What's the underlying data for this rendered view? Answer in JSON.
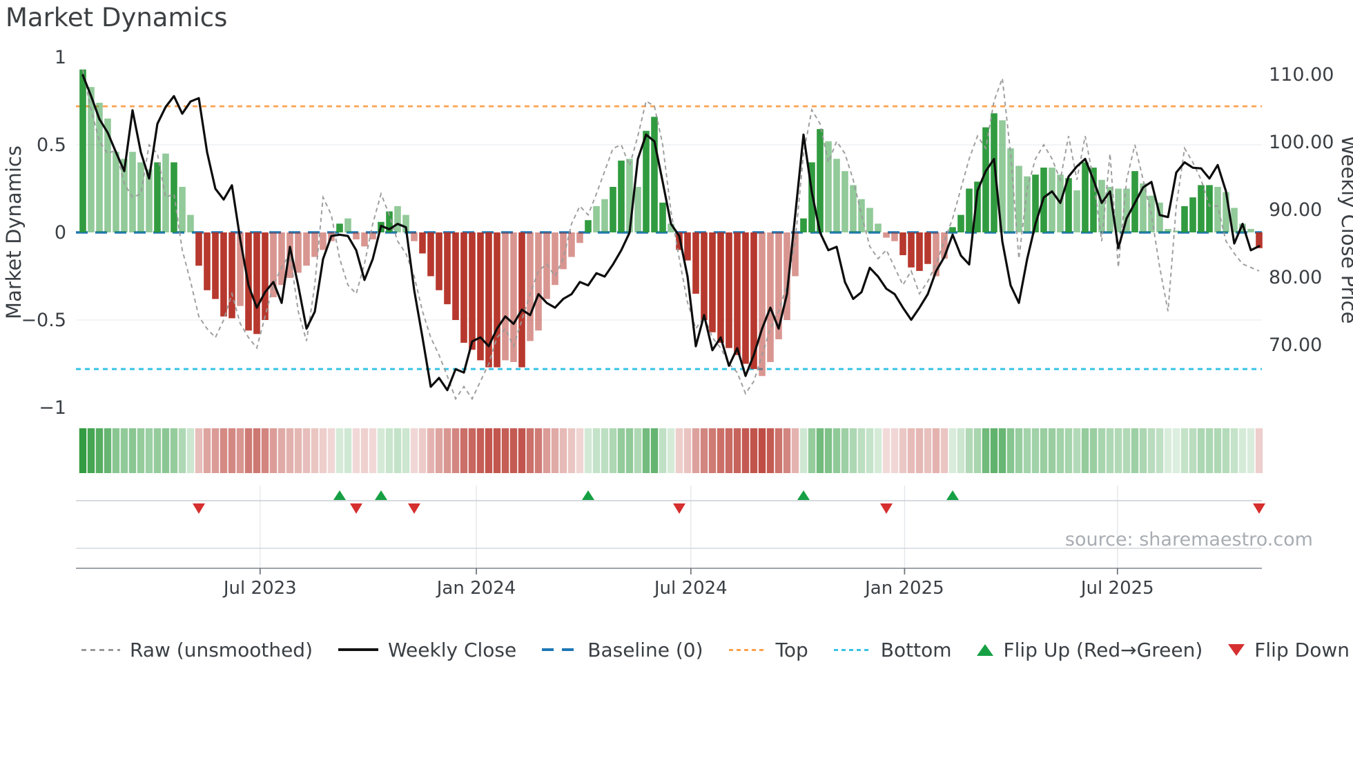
{
  "title": "Market Dynamics",
  "source_note": "source: sharemaestro.com",
  "axes": {
    "left_label": "Market Dynamics",
    "right_label": "Weekly Close Price",
    "left_ticks": [
      "1",
      "0.5",
      "0",
      "−0.5",
      "−1"
    ],
    "left_tick_values": [
      1,
      0.5,
      0,
      -0.5,
      -1
    ],
    "right_ticks": [
      "110.00",
      "100.00",
      "90.00",
      "80.00",
      "70.00"
    ],
    "right_tick_values": [
      110,
      100,
      90,
      80,
      70
    ],
    "x_ticks": [
      {
        "label": "Jul 2023",
        "week": 22.4
      },
      {
        "label": "Jan 2024",
        "week": 48.5
      },
      {
        "label": "Jul 2024",
        "week": 74.4
      },
      {
        "label": "Jan 2025",
        "week": 100.2
      },
      {
        "label": "Jul 2025",
        "week": 125.9
      }
    ]
  },
  "legend": {
    "items": [
      {
        "label": "Raw (unsmoothed)",
        "kind": "dashed-line",
        "color": "#999999"
      },
      {
        "label": "Weekly Close",
        "kind": "solid-line",
        "color": "#111111"
      },
      {
        "label": "Baseline (0)",
        "kind": "long-dash-line",
        "color": "#1f77b4"
      },
      {
        "label": "Top",
        "kind": "dotted-line",
        "color": "#ffa14f"
      },
      {
        "label": "Bottom",
        "kind": "dotted-line",
        "color": "#36c3e6"
      },
      {
        "label": "Flip Up (Red→Green)",
        "kind": "triangle-up",
        "color": "#16a044"
      },
      {
        "label": "Flip Down (Green→Red)",
        "kind": "triangle-down",
        "color": "#d62f2f"
      }
    ]
  },
  "chart_data": {
    "type": "combo",
    "subtype": "oscillator-bars + raw dashed line + weekly close price line + heatmap strip + flip markers",
    "title": "Market Dynamics",
    "start_date": "2023-01-30",
    "frequency": "weekly",
    "weeks": 143,
    "baseline": 0,
    "top_threshold": 0.72,
    "bottom_threshold": -0.78,
    "ylim_left": [
      -1.08,
      1.09
    ],
    "ylim_right": [
      56,
      114
    ],
    "grid_values_left": [
      0.5,
      -0.5
    ],
    "series": {
      "oscillator": [
        0.93,
        0.83,
        0.74,
        0.65,
        0.46,
        0.42,
        0.46,
        0.4,
        0.36,
        0.4,
        0.45,
        0.4,
        0.26,
        0.1,
        -0.19,
        -0.33,
        -0.38,
        -0.48,
        -0.49,
        -0.42,
        -0.56,
        -0.58,
        -0.5,
        -0.37,
        -0.3,
        -0.26,
        -0.23,
        -0.19,
        -0.14,
        -0.1,
        -0.05,
        0.05,
        0.08,
        -0.04,
        -0.08,
        -0.04,
        0.06,
        0.12,
        0.15,
        0.1,
        -0.05,
        -0.12,
        -0.25,
        -0.33,
        -0.41,
        -0.5,
        -0.63,
        -0.67,
        -0.73,
        -0.77,
        -0.77,
        -0.73,
        -0.74,
        -0.77,
        -0.62,
        -0.56,
        -0.38,
        -0.3,
        -0.21,
        -0.14,
        -0.06,
        0.07,
        0.15,
        0.19,
        0.26,
        0.41,
        0.42,
        0.26,
        0.58,
        0.66,
        0.17,
        0.05,
        -0.1,
        -0.16,
        -0.35,
        -0.5,
        -0.57,
        -0.63,
        -0.66,
        -0.7,
        -0.75,
        -0.78,
        -0.82,
        -0.74,
        -0.61,
        -0.5,
        -0.25,
        0.08,
        0.4,
        0.59,
        0.52,
        0.42,
        0.35,
        0.27,
        0.19,
        0.14,
        0.05,
        -0.03,
        -0.05,
        -0.13,
        -0.2,
        -0.22,
        -0.18,
        -0.25,
        -0.15,
        0.03,
        0.1,
        0.25,
        0.29,
        0.6,
        0.68,
        0.64,
        0.48,
        0.38,
        0.32,
        0.33,
        0.37,
        0.37,
        0.33,
        0.31,
        0.24,
        0.4,
        0.37,
        0.3,
        0.26,
        0.25,
        0.25,
        0.35,
        0.28,
        0.21,
        0.17,
        0.02,
        0.01,
        0.15,
        0.2,
        0.27,
        0.27,
        0.26,
        0.23,
        0.14,
        0.05,
        0.02,
        -0.09
      ],
      "oscillator_intensity": [
        1,
        0,
        0,
        0,
        0,
        0,
        0,
        0,
        0,
        1,
        0,
        1,
        0,
        0,
        1,
        1,
        1,
        1,
        1,
        0,
        1,
        1,
        1,
        0,
        0,
        0,
        0,
        0,
        0,
        0,
        0,
        1,
        0,
        0,
        0,
        0,
        1,
        1,
        0,
        0,
        0,
        1,
        1,
        1,
        1,
        1,
        1,
        1,
        1,
        1,
        1,
        0,
        0,
        1,
        0,
        0,
        0,
        0,
        0,
        0,
        0,
        1,
        0,
        0,
        1,
        1,
        0,
        0,
        1,
        1,
        1,
        0,
        1,
        1,
        1,
        1,
        1,
        1,
        1,
        1,
        1,
        1,
        0,
        0,
        0,
        0,
        0,
        1,
        1,
        1,
        0,
        0,
        0,
        0,
        0,
        0,
        0,
        0,
        0,
        1,
        1,
        1,
        1,
        0,
        0,
        1,
        1,
        1,
        1,
        1,
        1,
        0,
        0,
        0,
        0,
        1,
        1,
        0,
        0,
        1,
        0,
        1,
        1,
        0,
        0,
        0,
        0,
        1,
        0,
        0,
        0,
        0,
        0,
        1,
        1,
        1,
        1,
        0,
        0,
        0,
        0,
        0,
        1
      ],
      "raw_unsmoothed": [
        0.93,
        0.7,
        0.52,
        0.45,
        0.47,
        0.28,
        0.2,
        0.22,
        0.5,
        0.45,
        0.2,
        0.22,
        -0.1,
        -0.28,
        -0.48,
        -0.55,
        -0.6,
        -0.5,
        -0.35,
        -0.52,
        -0.6,
        -0.66,
        -0.48,
        -0.3,
        -0.2,
        -0.12,
        -0.45,
        -0.62,
        -0.3,
        0.2,
        0.1,
        -0.15,
        -0.3,
        -0.35,
        -0.18,
        0.05,
        0.22,
        0.1,
        -0.05,
        -0.12,
        -0.25,
        -0.45,
        -0.6,
        -0.7,
        -0.82,
        -0.95,
        -0.88,
        -0.95,
        -0.85,
        -0.75,
        -0.6,
        -0.55,
        -0.65,
        -0.5,
        -0.35,
        -0.22,
        -0.18,
        -0.25,
        -0.15,
        0.05,
        0.15,
        0.1,
        0.22,
        0.35,
        0.48,
        0.5,
        0.38,
        0.55,
        0.75,
        0.72,
        0.5,
        0.12,
        -0.15,
        -0.4,
        -0.55,
        -0.48,
        -0.6,
        -0.66,
        -0.75,
        -0.8,
        -0.92,
        -0.85,
        -0.7,
        -0.55,
        -0.45,
        -0.3,
        -0.05,
        0.45,
        0.7,
        0.62,
        0.4,
        0.52,
        0.45,
        0.3,
        0.1,
        -0.08,
        -0.15,
        -0.1,
        -0.2,
        -0.3,
        -0.22,
        -0.35,
        -0.28,
        -0.18,
        -0.05,
        0.08,
        0.25,
        0.42,
        0.55,
        0.48,
        0.75,
        0.88,
        0.45,
        -0.15,
        0.25,
        0.42,
        0.5,
        0.42,
        0.3,
        0.55,
        0.3,
        0.55,
        0.3,
        -0.05,
        0.45,
        -0.2,
        0.3,
        0.5,
        0.3,
        0.1,
        -0.2,
        -0.45,
        0.15,
        0.48,
        0.4,
        0.3,
        0.15,
        0.15,
        -0.05,
        -0.12,
        -0.18,
        -0.2,
        -0.22
      ],
      "weekly_close": [
        109.9,
        106.8,
        103.4,
        101.4,
        98.5,
        95.7,
        104.7,
        98.5,
        94.6,
        102.7,
        105.2,
        106.8,
        104.2,
        106.0,
        106.5,
        98.5,
        93.1,
        91.5,
        93.6,
        85.6,
        78.8,
        75.5,
        77.8,
        79.3,
        76.2,
        84.5,
        78.8,
        72.4,
        74.9,
        82.7,
        86.1,
        86.3,
        86.1,
        84.0,
        79.6,
        82.7,
        87.6,
        87.1,
        87.9,
        87.4,
        78.1,
        71.1,
        63.8,
        65.1,
        63.3,
        66.4,
        65.9,
        70.5,
        71.1,
        69.8,
        72.4,
        74.2,
        73.1,
        75.2,
        74.4,
        77.5,
        76.2,
        75.5,
        76.8,
        77.5,
        79.3,
        78.8,
        80.6,
        80.1,
        81.9,
        84.0,
        86.6,
        97.5,
        101.1,
        100.1,
        94.1,
        87.9,
        86.1,
        80.1,
        69.8,
        74.4,
        69.2,
        71.1,
        66.9,
        69.5,
        65.4,
        68.5,
        72.4,
        75.5,
        72.4,
        77.5,
        89.2,
        101.1,
        92.6,
        86.6,
        84.0,
        84.5,
        79.3,
        76.8,
        77.8,
        81.4,
        80.1,
        78.3,
        77.5,
        75.5,
        73.7,
        75.5,
        77.5,
        80.9,
        83.0,
        86.3,
        83.2,
        81.9,
        92.8,
        95.7,
        97.5,
        85.3,
        78.8,
        76.2,
        82.7,
        87.9,
        91.8,
        92.7,
        91.0,
        94.9,
        96.4,
        97.5,
        94.4,
        91.0,
        92.7,
        84.3,
        88.7,
        91.0,
        93.3,
        94.1,
        89.2,
        88.9,
        95.5,
        97.0,
        96.2,
        96.1,
        94.6,
        96.6,
        92.7,
        85.0,
        87.9,
        84.0,
        84.6
      ]
    },
    "flips": [
      {
        "week": 15,
        "direction": "down"
      },
      {
        "week": 32,
        "direction": "up"
      },
      {
        "week": 34,
        "direction": "down"
      },
      {
        "week": 37,
        "direction": "up"
      },
      {
        "week": 41,
        "direction": "down"
      },
      {
        "week": 62,
        "direction": "up"
      },
      {
        "week": 73,
        "direction": "down"
      },
      {
        "week": 88,
        "direction": "up"
      },
      {
        "week": 98,
        "direction": "down"
      },
      {
        "week": 106,
        "direction": "up"
      },
      {
        "week": 143,
        "direction": "down"
      }
    ],
    "legend_position": "bottom"
  },
  "colors": {
    "bar_green": "#269636",
    "bar_red": "#b32d23",
    "flip_up": "#16a044",
    "flip_down": "#d62f2f",
    "weekly_close": "#0d0d0d",
    "raw": "#9a9a9a",
    "baseline": "#1f77b4",
    "top": "#ffa14f",
    "bottom": "#36c3e6"
  }
}
